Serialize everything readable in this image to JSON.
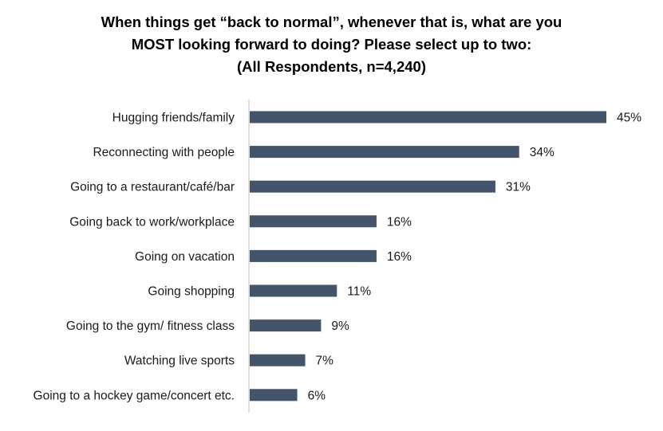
{
  "chart_data": {
    "type": "bar",
    "orientation": "horizontal",
    "title_lines": [
      "When things get “back to normal”, whenever that is, what are you",
      "MOST looking forward to doing? Please select up to two:",
      "(All Respondents, n=4,240)"
    ],
    "categories": [
      "Hugging friends/family",
      "Reconnecting with people",
      "Going to a restaurant/café/bar",
      "Going back to work/workplace",
      "Going on vacation",
      "Going shopping",
      "Going to the gym/ fitness class",
      "Watching live sports",
      "Going to a hockey game/concert etc."
    ],
    "values": [
      45,
      34,
      31,
      16,
      16,
      11,
      9,
      7,
      6
    ],
    "value_labels": [
      "45%",
      "34%",
      "31%",
      "16%",
      "16%",
      "11%",
      "9%",
      "7%",
      "6%"
    ],
    "bar_color": "#44546a",
    "xlim": [
      0,
      45
    ],
    "grid": false,
    "legend": "none"
  }
}
